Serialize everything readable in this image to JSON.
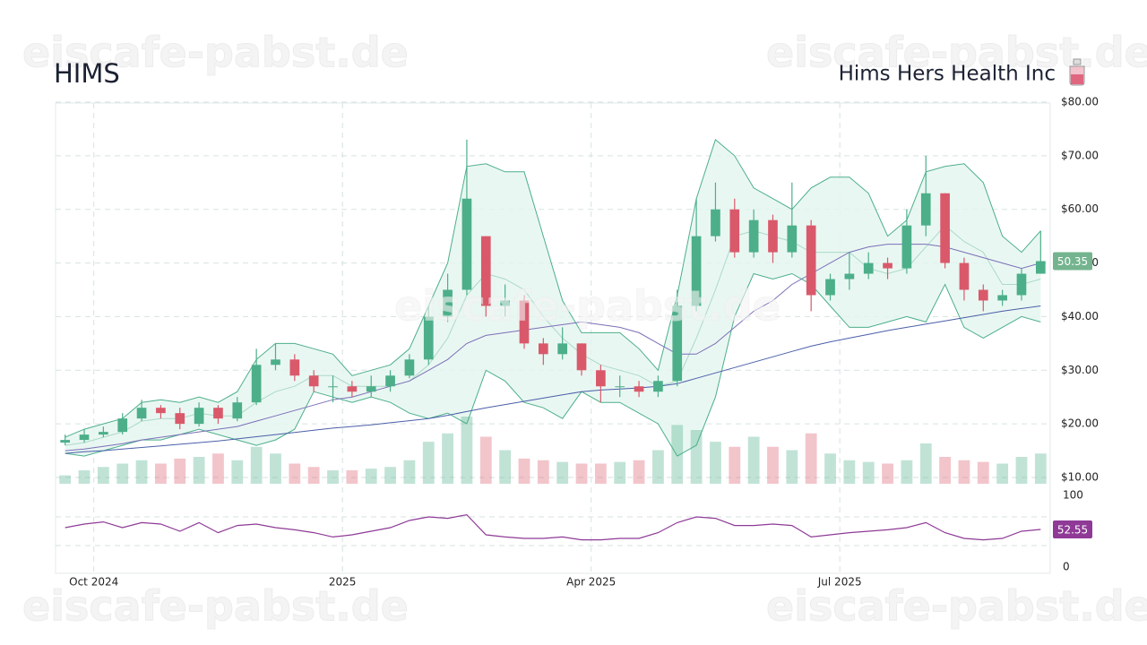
{
  "chart_data": {
    "type": "candlestick",
    "title": "HIMS",
    "subtitle": "Hims Hers Health Inc",
    "watermark": "eiscafe-pabst.de",
    "categories": [
      null,
      null,
      "Oct 2024",
      null,
      null,
      null,
      null,
      null,
      null,
      null,
      null,
      null,
      null,
      null,
      null,
      "2025",
      null,
      null,
      null,
      null,
      null,
      null,
      null,
      null,
      null,
      null,
      null,
      null,
      "Apr 2025",
      null,
      null,
      null,
      null,
      null,
      null,
      null,
      null,
      null,
      null,
      null,
      null,
      "Jul 2025",
      null,
      null,
      null,
      null,
      null,
      null,
      null,
      null,
      null,
      null
    ],
    "open": [
      16.5,
      17,
      18,
      18.5,
      21,
      23,
      22,
      20,
      23,
      21,
      24,
      31,
      32,
      29,
      27,
      27,
      26,
      27,
      29,
      32,
      40,
      45,
      55,
      42,
      43,
      35,
      33,
      35,
      30,
      27,
      27,
      26,
      28,
      42,
      55,
      60,
      52,
      58,
      52,
      57,
      44,
      47,
      48,
      50,
      49,
      57,
      63,
      50,
      45,
      43,
      44,
      48
    ],
    "high": [
      18,
      19,
      19.5,
      22,
      24.5,
      23.5,
      23,
      24,
      23.5,
      25,
      34,
      35,
      33,
      30,
      29,
      28,
      29,
      30,
      33,
      42,
      48,
      73,
      55,
      46,
      44,
      36,
      38,
      35,
      31,
      29,
      28,
      29,
      45,
      62,
      65,
      62,
      60,
      59,
      65,
      58,
      48,
      52,
      52,
      51,
      60,
      70,
      63,
      51,
      46,
      45,
      49,
      56
    ],
    "low": [
      16,
      16.5,
      17.5,
      18,
      20.5,
      21,
      19,
      19.5,
      20,
      20.5,
      23.5,
      30,
      28,
      26,
      24,
      25,
      25,
      26,
      28.5,
      31,
      39,
      44,
      40,
      40,
      34,
      31,
      32,
      29,
      24,
      25,
      25,
      25,
      27,
      41,
      54,
      51,
      51,
      50,
      51,
      41,
      43,
      45,
      47,
      47,
      48,
      55,
      49,
      43,
      41,
      42,
      43,
      48
    ],
    "close": [
      17,
      18,
      18.5,
      21,
      23,
      22,
      20,
      23,
      21,
      24,
      31,
      32,
      29,
      27,
      27,
      26,
      27,
      29,
      32,
      40,
      45,
      62,
      42,
      43,
      35,
      33,
      35,
      30,
      27,
      27,
      26,
      28,
      42,
      55,
      60,
      52,
      58,
      52,
      57,
      44,
      47,
      48,
      50,
      49,
      57,
      63,
      50,
      45,
      43,
      44,
      48,
      50.35
    ],
    "up_color": "#4caf8a",
    "down_color": "#d9596b",
    "ylim": [
      10,
      80
    ],
    "yticks": [
      {
        "value": 10,
        "label": "$10.00"
      },
      {
        "value": 20,
        "label": "$20.00"
      },
      {
        "value": 30,
        "label": "$30.00"
      },
      {
        "value": 40,
        "label": "$40.00"
      },
      {
        "value": 50,
        "label": "$50.00"
      },
      {
        "value": 60,
        "label": "$60.00"
      },
      {
        "value": 70,
        "label": "$70.00"
      },
      {
        "value": 80,
        "label": "$80.00"
      }
    ],
    "grid": true,
    "bands": {
      "color": "#4caf8a",
      "fill": "#e3f5ef",
      "upper": [
        17.5,
        19,
        20,
        21,
        24,
        24.5,
        24,
        25,
        24,
        26,
        32,
        35,
        35,
        34,
        33,
        29,
        30,
        31,
        34,
        42,
        50,
        68,
        68.5,
        67,
        67,
        55,
        43,
        37,
        37,
        37,
        34,
        30,
        44,
        62,
        73,
        70,
        64,
        62,
        60,
        64,
        66,
        66,
        63,
        55,
        58,
        67,
        68,
        68.5,
        65,
        55,
        52,
        56
      ],
      "middle": [
        16,
        16.5,
        17.5,
        18.5,
        20.5,
        21,
        21,
        22,
        21.5,
        21.5,
        24,
        26,
        27,
        29,
        29,
        27,
        27,
        27,
        28,
        31,
        36,
        44,
        48,
        47,
        45,
        40,
        36,
        33,
        31,
        30,
        29,
        27,
        28,
        36,
        45,
        55,
        56,
        55,
        54,
        52,
        52,
        52,
        49,
        48,
        49,
        53,
        57,
        54,
        52,
        46,
        46,
        47
      ],
      "lower": [
        14.5,
        14,
        15,
        16,
        17,
        17,
        18,
        19,
        18,
        17,
        16,
        17,
        19,
        26,
        25,
        24,
        25,
        24,
        22,
        21,
        22,
        20,
        30,
        28,
        24,
        23,
        21,
        26,
        24,
        24,
        22,
        20,
        14,
        16,
        25,
        40,
        48,
        47,
        48,
        46,
        42,
        38,
        38,
        39,
        40,
        39,
        46,
        38,
        36,
        38,
        40,
        39
      ]
    },
    "overlays": [
      {
        "color": "#7b6fb8",
        "values": [
          15,
          15.3,
          15.8,
          16.3,
          17,
          17.5,
          18,
          18.5,
          19,
          19.5,
          20.5,
          21.5,
          22.5,
          23.5,
          24.5,
          25,
          26,
          27,
          28,
          30,
          32,
          35,
          36.5,
          37,
          37.5,
          38,
          38.5,
          39,
          38.5,
          38,
          37,
          35,
          33,
          33,
          35,
          38,
          41,
          43,
          46,
          48,
          50,
          52,
          53,
          53.5,
          53.5,
          53.5,
          53,
          52,
          51,
          50,
          49,
          50
        ]
      },
      {
        "color": "#4a5fa8",
        "values": [
          14.5,
          14.8,
          15,
          15.3,
          15.6,
          15.9,
          16.2,
          16.5,
          16.8,
          17.2,
          17.6,
          18,
          18.4,
          18.8,
          19.2,
          19.5,
          19.8,
          20.2,
          20.6,
          21,
          21.6,
          22.3,
          23,
          23.6,
          24.2,
          24.8,
          25.4,
          26,
          26.3,
          26.5,
          26.7,
          27,
          27.5,
          28.5,
          29.5,
          30.5,
          31.5,
          32.5,
          33.5,
          34.5,
          35.3,
          36,
          36.7,
          37.4,
          38,
          38.6,
          39.2,
          39.8,
          40.4,
          41,
          41.5,
          42
        ]
      }
    ],
    "volume": {
      "values": [
        5,
        8,
        10,
        12,
        14,
        12,
        15,
        16,
        18,
        14,
        22,
        18,
        12,
        10,
        8,
        8,
        9,
        10,
        14,
        25,
        30,
        40,
        28,
        20,
        15,
        14,
        13,
        12,
        12,
        13,
        14,
        20,
        35,
        32,
        25,
        22,
        28,
        22,
        20,
        30,
        18,
        14,
        13,
        12,
        14,
        24,
        16,
        14,
        13,
        12,
        16,
        18
      ]
    },
    "rsi": {
      "color": "#8e3a96",
      "ylim": [
        0,
        100
      ],
      "yticks": [
        0,
        100
      ],
      "levels": [
        30,
        70
      ],
      "values": [
        55,
        60,
        63,
        55,
        62,
        60,
        50,
        62,
        48,
        58,
        60,
        55,
        52,
        48,
        42,
        45,
        50,
        55,
        65,
        70,
        68,
        73,
        45,
        42,
        40,
        40,
        42,
        38,
        38,
        40,
        40,
        48,
        62,
        70,
        68,
        58,
        58,
        60,
        58,
        42,
        45,
        48,
        50,
        52,
        55,
        62,
        48,
        40,
        38,
        40,
        50,
        52.55
      ]
    }
  }
}
